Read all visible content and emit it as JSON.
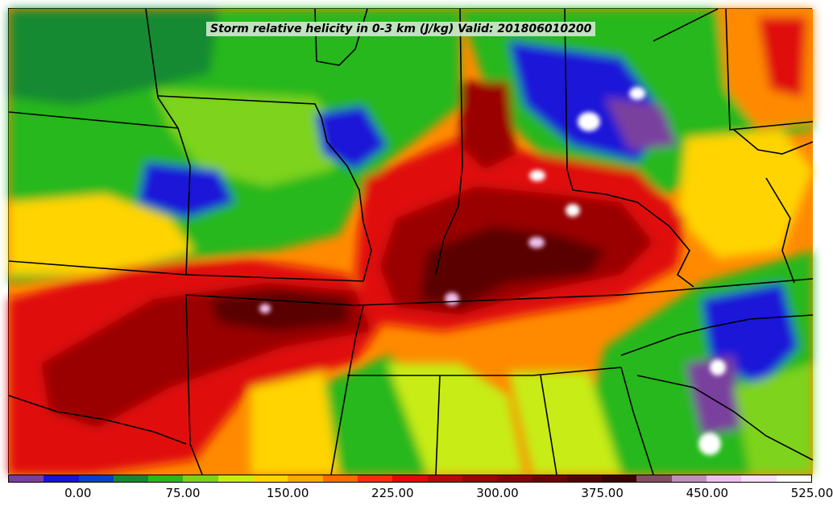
{
  "title": "Storm relative helicity in 0-3 km (J/kg) Valid: 201806010200",
  "colorbar": {
    "colors": [
      "#7a3f9e",
      "#1a12d8",
      "#0a3fc8",
      "#138a32",
      "#28b81c",
      "#7ed31a",
      "#c7ec16",
      "#ffd400",
      "#ffa800",
      "#ff6a00",
      "#ff2a10",
      "#e00a0a",
      "#b80808",
      "#980606",
      "#820505",
      "#6a0404",
      "#520303",
      "#3c0202",
      "#805060",
      "#c090b8",
      "#f0c0ec",
      "#fae0f8",
      "#ffffff"
    ],
    "ticks": [
      "0.00",
      "75.00",
      "150.00",
      "225.00",
      "300.00",
      "375.00",
      "450.00",
      "525.00"
    ]
  },
  "field_colors": {
    "green": "#28b81c",
    "dark_green": "#138a32",
    "light_green": "#7ed31a",
    "yellow_green": "#c7ec16",
    "yellow": "#ffd400",
    "orange": "#ff8a00",
    "red": "#e01010",
    "dark_red": "#9a0606",
    "maroon": "#5a0303",
    "blue": "#1a12d8",
    "purple": "#7a3f9e",
    "pink": "#f0c0ec",
    "white": "#ffffff"
  }
}
